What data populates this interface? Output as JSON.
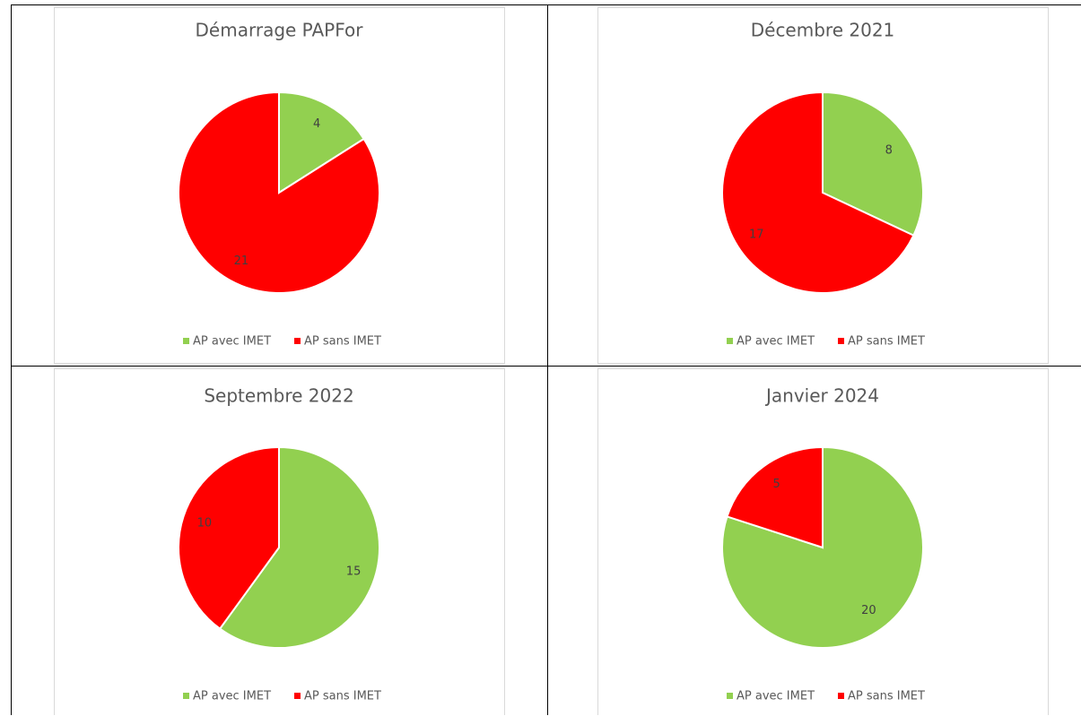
{
  "chart_data": [
    {
      "type": "pie",
      "title": "Démarrage PAPFor",
      "categories": [
        "AP avec IMET",
        "AP sans IMET"
      ],
      "values": [
        4,
        21
      ],
      "colors": [
        "#92d050",
        "#ff0000"
      ]
    },
    {
      "type": "pie",
      "title": "Décembre 2021",
      "categories": [
        "AP avec IMET",
        "AP sans IMET"
      ],
      "values": [
        8,
        17
      ],
      "colors": [
        "#92d050",
        "#ff0000"
      ]
    },
    {
      "type": "pie",
      "title": "Septembre 2022",
      "categories": [
        "AP avec IMET",
        "AP sans IMET"
      ],
      "values": [
        15,
        10
      ],
      "colors": [
        "#92d050",
        "#ff0000"
      ]
    },
    {
      "type": "pie",
      "title": "Janvier 2024",
      "categories": [
        "AP avec IMET",
        "AP sans IMET"
      ],
      "values": [
        20,
        5
      ],
      "colors": [
        "#92d050",
        "#ff0000"
      ]
    }
  ]
}
